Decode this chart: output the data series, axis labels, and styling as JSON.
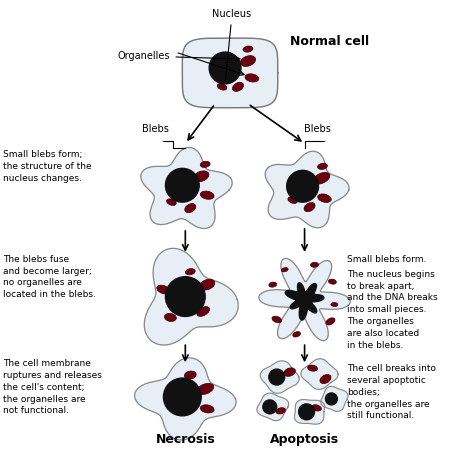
{
  "title": "Normal cell",
  "background_color": "#ffffff",
  "cell_fill": "#e8eef5",
  "cell_edge": "#aaaaaa",
  "nucleus_fill": "#111111",
  "organelle_fill": "#6b0010",
  "label_nucleus": "Nucleus",
  "label_organelles": "Organelles",
  "label_blebs_left": "Blebs",
  "label_blebs_right": "Blebs",
  "label_necrosis": "Necrosis",
  "label_apoptosis": "Apoptosis",
  "text_left_1": "Small blebs form;\nthe structure of the\nnucleus changes.",
  "text_left_2": "The blebs fuse\nand become larger;\nno organelles are\nlocated in the blebs.",
  "text_left_3": "The cell membrane\nruptures and releases\nthe cell's content;\nthe organelles are\nnot functional.",
  "text_right_1": "Small blebs form.",
  "text_right_2": "The nucleus begins\nto break apart,\nand the DNA breaks\ninto small pieces.\nThe organelles\nare also located\nin the blebs.",
  "text_right_3": "The cell breaks into\nseveral apoptotic\nbodies;\nthe organelles are\nstill functional."
}
